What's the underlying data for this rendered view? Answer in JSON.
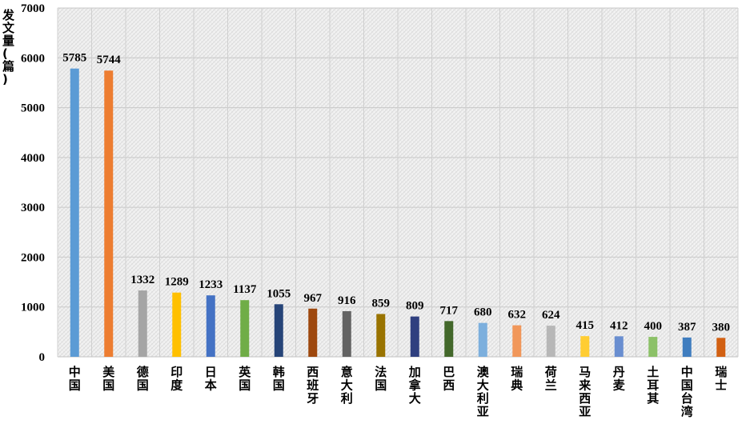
{
  "chart_data": {
    "type": "bar",
    "ylabel": "发文量(篇)",
    "ylim": [
      0,
      7000
    ],
    "yticks": [
      0,
      1000,
      2000,
      3000,
      4000,
      5000,
      6000,
      7000
    ],
    "grid": true,
    "categories": [
      "中国",
      "美国",
      "德国",
      "印度",
      "日本",
      "英国",
      "韩国",
      "西班牙",
      "意大利",
      "法国",
      "加拿大",
      "巴西",
      "澳大利亚",
      "瑞典",
      "荷兰",
      "马来西亚",
      "丹麦",
      "土耳其",
      "中国台湾",
      "瑞士"
    ],
    "values": [
      5785,
      5744,
      1332,
      1289,
      1233,
      1137,
      1055,
      967,
      916,
      859,
      809,
      717,
      680,
      632,
      624,
      415,
      412,
      400,
      387,
      380
    ],
    "colors": [
      "#5b9bd5",
      "#ed7d31",
      "#a5a5a5",
      "#ffc000",
      "#4472c4",
      "#70ad47",
      "#264478",
      "#9e480e",
      "#636363",
      "#997300",
      "#2f3f7f",
      "#43682b",
      "#7cafdd",
      "#f1975a",
      "#b7b7b7",
      "#ffcd33",
      "#698ed0",
      "#8cc168",
      "#3f7dbf",
      "#d26012"
    ]
  }
}
